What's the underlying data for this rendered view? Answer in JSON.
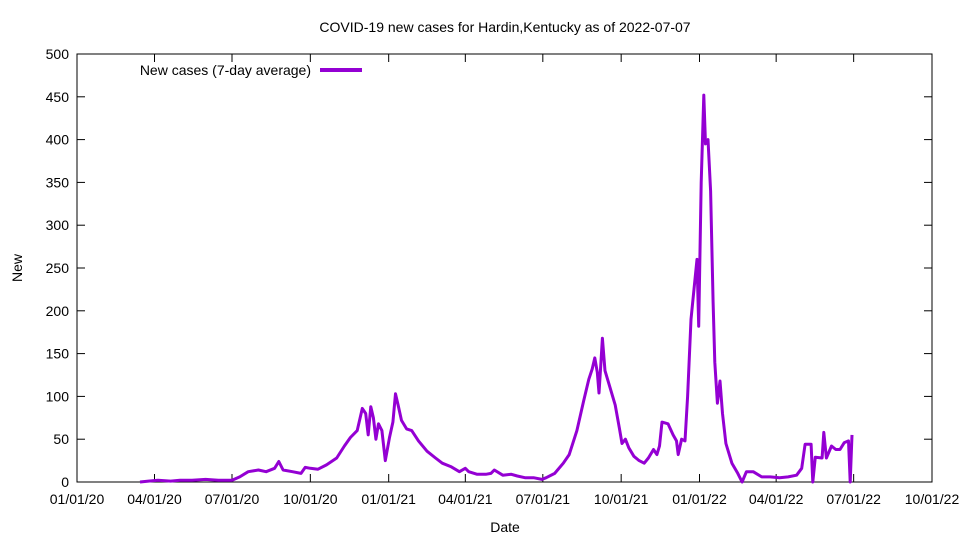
{
  "chart_data": {
    "type": "line",
    "title": "COVID-19 new cases for Hardin,Kentucky as of 2022-07-07",
    "xlabel": "Date",
    "ylabel": "New",
    "ylim": [
      0,
      500
    ],
    "yticks": [
      0,
      50,
      100,
      150,
      200,
      250,
      300,
      350,
      400,
      450,
      500
    ],
    "xlim": [
      "2020-01-01",
      "2022-10-01"
    ],
    "xticks": [
      "01/01/20",
      "04/01/20",
      "07/01/20",
      "10/01/20",
      "01/01/21",
      "04/01/21",
      "07/01/21",
      "10/01/21",
      "01/01/22",
      "04/01/22",
      "07/01/22",
      "10/01/22"
    ],
    "grid": false,
    "legend_position": "top-left",
    "line_color": "#9400d3",
    "series": [
      {
        "name": "New cases (7-day average)",
        "points": [
          [
            "2020-03-15",
            0
          ],
          [
            "2020-03-25",
            1
          ],
          [
            "2020-04-05",
            2
          ],
          [
            "2020-04-20",
            1
          ],
          [
            "2020-05-01",
            2
          ],
          [
            "2020-05-15",
            2
          ],
          [
            "2020-05-31",
            3
          ],
          [
            "2020-06-15",
            2
          ],
          [
            "2020-07-01",
            2
          ],
          [
            "2020-07-10",
            6
          ],
          [
            "2020-07-20",
            12
          ],
          [
            "2020-08-01",
            14
          ],
          [
            "2020-08-10",
            12
          ],
          [
            "2020-08-20",
            16
          ],
          [
            "2020-08-25",
            24
          ],
          [
            "2020-08-30",
            14
          ],
          [
            "2020-09-10",
            12
          ],
          [
            "2020-09-20",
            10
          ],
          [
            "2020-09-25",
            17
          ],
          [
            "2020-10-01",
            16
          ],
          [
            "2020-10-10",
            15
          ],
          [
            "2020-10-20",
            20
          ],
          [
            "2020-11-01",
            28
          ],
          [
            "2020-11-10",
            42
          ],
          [
            "2020-11-17",
            52
          ],
          [
            "2020-11-25",
            60
          ],
          [
            "2020-12-01",
            86
          ],
          [
            "2020-12-05",
            80
          ],
          [
            "2020-12-08",
            55
          ],
          [
            "2020-12-11",
            88
          ],
          [
            "2020-12-14",
            75
          ],
          [
            "2020-12-17",
            50
          ],
          [
            "2020-12-20",
            68
          ],
          [
            "2020-12-24",
            60
          ],
          [
            "2020-12-28",
            25
          ],
          [
            "2021-01-02",
            52
          ],
          [
            "2021-01-06",
            70
          ],
          [
            "2021-01-09",
            103
          ],
          [
            "2021-01-12",
            90
          ],
          [
            "2021-01-16",
            72
          ],
          [
            "2021-01-22",
            62
          ],
          [
            "2021-01-28",
            60
          ],
          [
            "2021-02-05",
            48
          ],
          [
            "2021-02-15",
            36
          ],
          [
            "2021-02-25",
            28
          ],
          [
            "2021-03-05",
            22
          ],
          [
            "2021-03-15",
            18
          ],
          [
            "2021-03-25",
            12
          ],
          [
            "2021-04-01",
            16
          ],
          [
            "2021-04-05",
            12
          ],
          [
            "2021-04-15",
            9
          ],
          [
            "2021-04-25",
            9
          ],
          [
            "2021-05-01",
            10
          ],
          [
            "2021-05-05",
            14
          ],
          [
            "2021-05-15",
            8
          ],
          [
            "2021-05-25",
            9
          ],
          [
            "2021-06-01",
            7
          ],
          [
            "2021-06-10",
            5
          ],
          [
            "2021-06-20",
            5
          ],
          [
            "2021-06-30",
            3
          ],
          [
            "2021-07-05",
            5
          ],
          [
            "2021-07-15",
            10
          ],
          [
            "2021-07-25",
            22
          ],
          [
            "2021-08-01",
            32
          ],
          [
            "2021-08-10",
            60
          ],
          [
            "2021-08-18",
            95
          ],
          [
            "2021-08-24",
            120
          ],
          [
            "2021-08-28",
            132
          ],
          [
            "2021-08-31",
            145
          ],
          [
            "2021-09-03",
            128
          ],
          [
            "2021-09-05",
            104
          ],
          [
            "2021-09-07",
            135
          ],
          [
            "2021-09-09",
            168
          ],
          [
            "2021-09-12",
            130
          ],
          [
            "2021-09-18",
            110
          ],
          [
            "2021-09-24",
            90
          ],
          [
            "2021-09-29",
            62
          ],
          [
            "2021-10-02",
            45
          ],
          [
            "2021-10-06",
            50
          ],
          [
            "2021-10-10",
            40
          ],
          [
            "2021-10-16",
            30
          ],
          [
            "2021-10-22",
            25
          ],
          [
            "2021-10-28",
            22
          ],
          [
            "2021-11-02",
            28
          ],
          [
            "2021-11-08",
            38
          ],
          [
            "2021-11-12",
            32
          ],
          [
            "2021-11-15",
            42
          ],
          [
            "2021-11-18",
            70
          ],
          [
            "2021-11-25",
            68
          ],
          [
            "2021-12-01",
            55
          ],
          [
            "2021-12-05",
            48
          ],
          [
            "2021-12-07",
            32
          ],
          [
            "2021-12-11",
            50
          ],
          [
            "2021-12-15",
            48
          ],
          [
            "2021-12-18",
            100
          ],
          [
            "2021-12-22",
            190
          ],
          [
            "2021-12-26",
            230
          ],
          [
            "2021-12-29",
            260
          ],
          [
            "2021-12-31",
            182
          ],
          [
            "2022-01-03",
            350
          ],
          [
            "2022-01-06",
            452
          ],
          [
            "2022-01-08",
            395
          ],
          [
            "2022-01-11",
            400
          ],
          [
            "2022-01-14",
            340
          ],
          [
            "2022-01-17",
            210
          ],
          [
            "2022-01-19",
            140
          ],
          [
            "2022-01-22",
            92
          ],
          [
            "2022-01-25",
            118
          ],
          [
            "2022-01-28",
            80
          ],
          [
            "2022-02-01",
            45
          ],
          [
            "2022-02-08",
            22
          ],
          [
            "2022-02-15",
            10
          ],
          [
            "2022-02-20",
            0
          ],
          [
            "2022-02-25",
            12
          ],
          [
            "2022-03-05",
            12
          ],
          [
            "2022-03-15",
            6
          ],
          [
            "2022-03-25",
            6
          ],
          [
            "2022-04-05",
            5
          ],
          [
            "2022-04-15",
            6
          ],
          [
            "2022-04-25",
            8
          ],
          [
            "2022-05-01",
            16
          ],
          [
            "2022-05-05",
            44
          ],
          [
            "2022-05-12",
            44
          ],
          [
            "2022-05-14",
            0
          ],
          [
            "2022-05-17",
            29
          ],
          [
            "2022-05-25",
            28
          ],
          [
            "2022-05-27",
            58
          ],
          [
            "2022-05-30",
            28
          ],
          [
            "2022-06-05",
            42
          ],
          [
            "2022-06-10",
            38
          ],
          [
            "2022-06-15",
            38
          ],
          [
            "2022-06-20",
            46
          ],
          [
            "2022-06-25",
            48
          ],
          [
            "2022-06-27",
            0
          ],
          [
            "2022-06-29",
            55
          ]
        ]
      }
    ]
  }
}
